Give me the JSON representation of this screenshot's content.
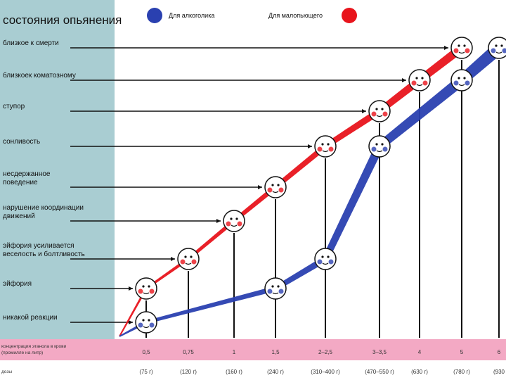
{
  "sidebar": {
    "title": "состояния опьянения"
  },
  "legend": {
    "alcoholic": {
      "label": "Для алкоголика",
      "color": "#2a40b0"
    },
    "light_drinker": {
      "label": "Для малопьющего",
      "color": "#e8141c"
    }
  },
  "axis": {
    "concentration_title_line1": "концентрация этанола в крови",
    "concentration_title_line2": "(промилле на литр)",
    "dose_title": "дозы"
  },
  "colors": {
    "sidebar": "#a9cdd2",
    "band": "#f3a9c4",
    "guide": "#111111",
    "background": "#ffffff"
  },
  "chart_data": {
    "type": "line",
    "title": "состояния опьянения",
    "x_tick_labels": [
      "0,5",
      "0,75",
      "1",
      "1,5",
      "2–2,5",
      "3–3,5",
      "4",
      "5",
      "6"
    ],
    "dose_labels": [
      "(75 г)",
      "(120 г)",
      "(160 г)",
      "(240 г)",
      "(310–400 г)",
      "(470–550 г)",
      "(630 г)",
      "(780 г)",
      "(930"
    ],
    "y_categories": [
      "никакой реакции",
      "эйфория",
      "эйфория усиливается веселость и болтливость",
      "нарушение координации движений",
      "несдержанное поведение",
      "сонливость",
      "ступор",
      "близкоек коматозному",
      "близкое к смерти"
    ],
    "states": [
      {
        "lines": [
          "никакой реакции"
        ]
      },
      {
        "lines": [
          "эйфория"
        ]
      },
      {
        "lines": [
          "эйфория усиливается",
          "веселость и болтливость"
        ]
      },
      {
        "lines": [
          "нарушение координации",
          "движений"
        ]
      },
      {
        "lines": [
          "несдержанное",
          "поведение"
        ]
      },
      {
        "lines": [
          "сонливость"
        ]
      },
      {
        "lines": [
          "ступор"
        ]
      },
      {
        "lines": [
          "близкоек коматозному"
        ]
      },
      {
        "lines": [
          "близкое к смерти"
        ]
      }
    ],
    "series": [
      {
        "name": "Для малопьющего",
        "color": "#e8141c",
        "x_index": [
          0,
          1,
          2,
          3,
          4,
          5,
          6,
          7
        ],
        "state_index": [
          1,
          2,
          3,
          4,
          5,
          6,
          7,
          8
        ]
      },
      {
        "name": "Для алкоголика",
        "color": "#2a40b0",
        "x_index": [
          0,
          3,
          4,
          5,
          7,
          8
        ],
        "state_index": [
          0,
          1,
          2,
          5,
          7,
          8
        ]
      }
    ]
  }
}
